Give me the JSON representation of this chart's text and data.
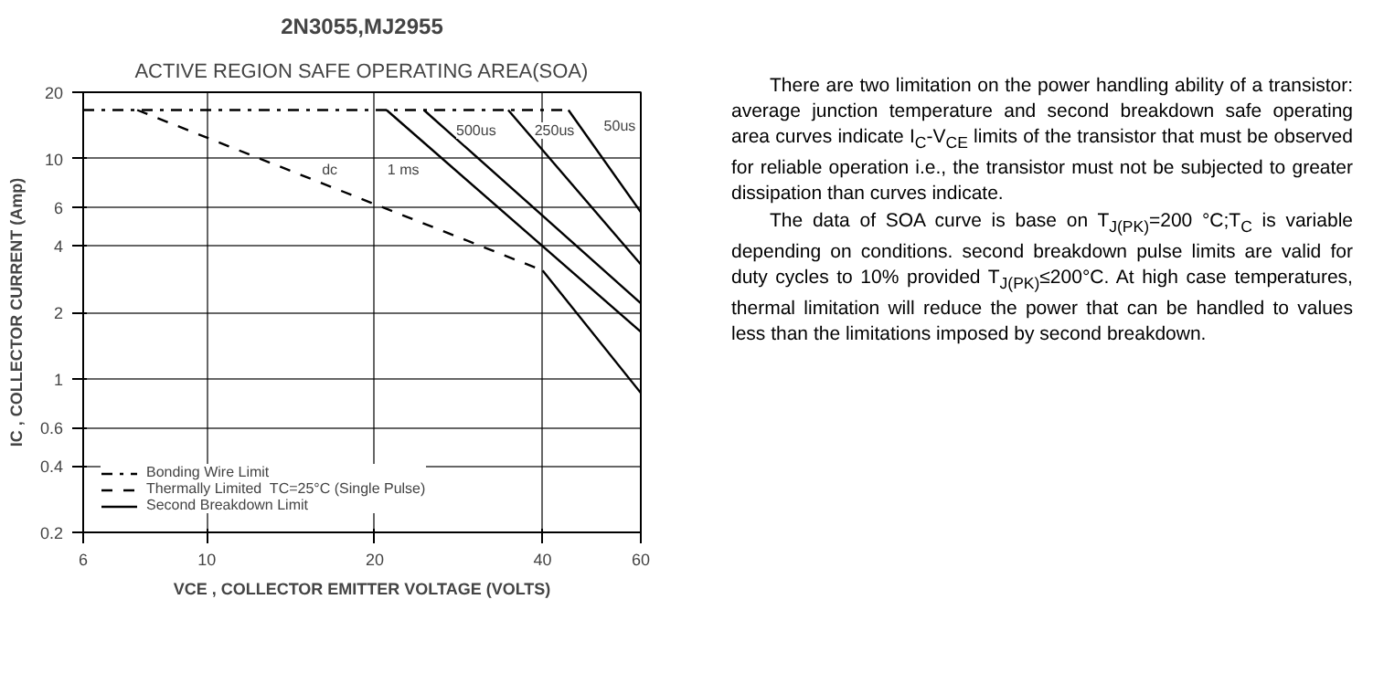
{
  "chart_data": {
    "type": "line",
    "title": "2N3055,MJ2955",
    "subtitle": "ACTIVE REGION SAFE OPERATING AREA(SOA)",
    "xlabel": "VCE , COLLECTOR EMITTER VOLTAGE (VOLTS)",
    "ylabel": "IC , COLLECTOR CURRENT (Amp)",
    "log": "xy",
    "xlim": [
      6,
      60
    ],
    "ylim": [
      0.2,
      20
    ],
    "xticks": [
      6,
      10,
      20,
      40,
      60
    ],
    "yticks": [
      0.2,
      0.4,
      0.6,
      1,
      2,
      4,
      6,
      10,
      20
    ],
    "grid": true,
    "legend": "bottom left",
    "series": [
      {
        "name": "Bonding Wire Limit",
        "color": "#000000",
        "line_style": "dashdot",
        "x": [
          6,
          44.5
        ],
        "values": [
          16.6,
          16.6
        ]
      },
      {
        "name": "Thermally Limited  TC=25°C (Single Pulse)",
        "color": "#000000",
        "line_style": "dashed",
        "x": [
          7.5,
          20,
          40
        ],
        "values": [
          16.6,
          6.2,
          3.1
        ]
      },
      {
        "name": "Second Breakdown Limit",
        "color": "#000000",
        "line_style": "solid",
        "x": [
          40,
          60
        ],
        "values": [
          3.1,
          0.86
        ]
      },
      {
        "color": "#000000",
        "line_style": "solid",
        "x": [
          21,
          60
        ],
        "values": [
          16.6,
          1.63
        ]
      },
      {
        "color": "#000000",
        "line_style": "solid",
        "x": [
          24.5,
          60
        ],
        "values": [
          16.6,
          2.2
        ]
      },
      {
        "color": "#000000",
        "line_style": "solid",
        "x": [
          34.7,
          60
        ],
        "values": [
          16.6,
          3.3
        ]
      },
      {
        "color": "#000000",
        "line_style": "solid",
        "x": [
          44.5,
          60
        ],
        "values": [
          16.6,
          5.7
        ]
      }
    ],
    "annotations": [
      {
        "text": "dc",
        "x": 16.6,
        "y": 8.9
      },
      {
        "text": "1 ms",
        "x": 22.5,
        "y": 8.9
      },
      {
        "text": "500us",
        "x": 30.4,
        "y": 13.4
      },
      {
        "text": "250us",
        "x": 42,
        "y": 13.4
      },
      {
        "text": "50us",
        "x": 55,
        "y": 14
      },
      "There are two limitation on the power handling ability of a transistor: average junction temperature and second breakdown safe operating area curves indicate I$_{C}$-V$_{CE}$ limits of the transistor that must be observed for reliable operation i.e., the transistor must not be subjected to greater dissipation than curves indicate.",
      "The data of SOA curve is base on T$_{J(PK)}$=200 °C;T$_{C}$ is variable depending on conditions. second breakdown pulse limits are valid for duty cycles to 10% provided T$_{J(PK)}$≤200°C. At high case temperatures, thermal limitation will reduce the power that can be handled to values less than the limitations imposed by second breakdown."
    ]
  }
}
